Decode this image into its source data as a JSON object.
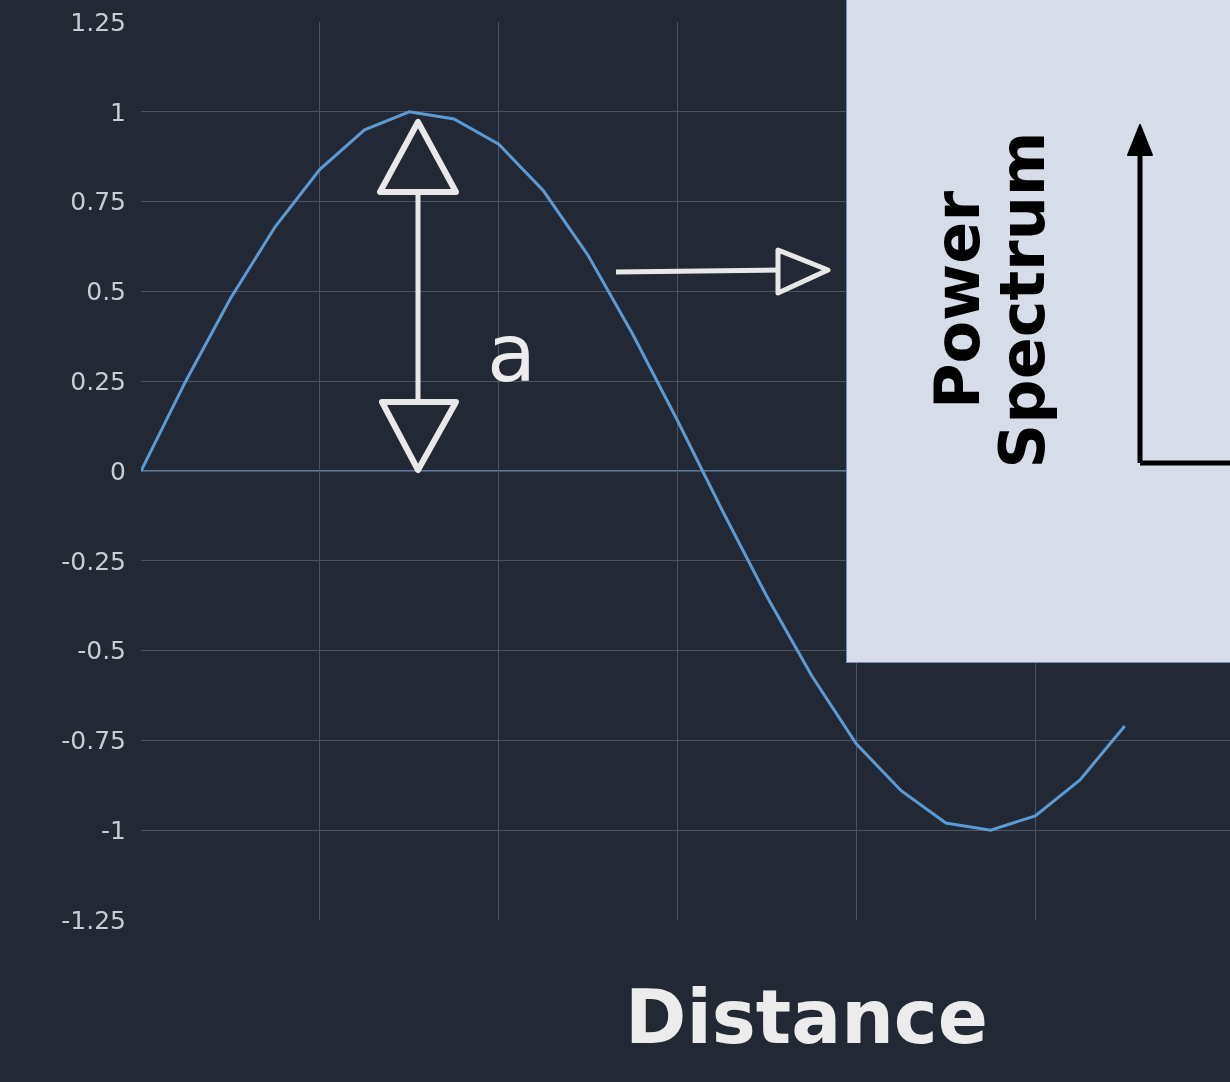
{
  "chart_data": {
    "type": "line",
    "xlabel": "Distance",
    "categories": [
      null,
      null,
      null,
      null,
      null,
      null,
      null,
      null,
      null,
      null,
      null,
      null,
      null,
      null,
      null,
      null,
      null,
      null,
      null,
      null,
      null,
      null,
      null
    ],
    "series": [
      {
        "color": "#5b9bd5",
        "values": [
          0,
          0.25,
          0.48,
          0.68,
          0.84,
          0.95,
          1.0,
          0.98,
          0.91,
          0.78,
          0.6,
          0.38,
          0.14,
          -0.11,
          -0.35,
          -0.57,
          -0.76,
          -0.89,
          -0.98,
          -1.0,
          -0.96,
          -0.86,
          -0.71
        ]
      }
    ],
    "ylim": [
      -1.25,
      1.25
    ],
    "yticks": [
      -1.25,
      -1,
      -0.75,
      -0.5,
      -0.25,
      0,
      0.25,
      0.5,
      0.75,
      1,
      1.25
    ],
    "ref_lines": [
      {
        "axis": "y",
        "value": 0,
        "color": "#5b9bd5"
      }
    ],
    "tick_labels": "y",
    "grid": true,
    "marker": "none",
    "line_style": "solid",
    "annotations": [
      "a",
      "Power\nSpectrum"
    ]
  }
}
